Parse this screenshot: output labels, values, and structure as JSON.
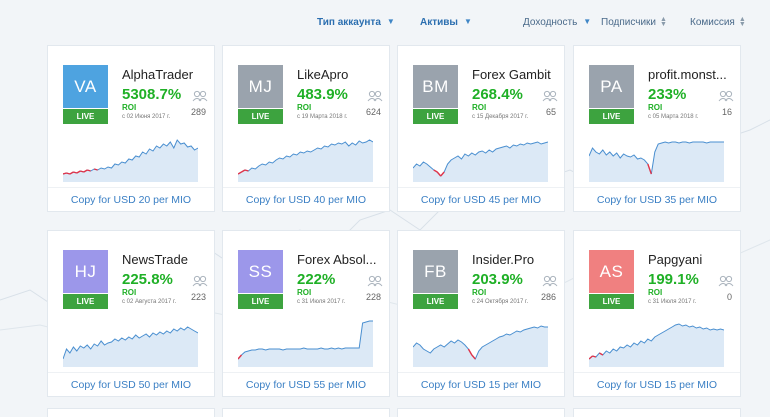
{
  "filters": {
    "account_type": "Тип аккаунта",
    "assets": "Активы",
    "profitability": "Доходность",
    "subscribers": "Подписчики",
    "commission": "Комиссия"
  },
  "cards": [
    {
      "initials": "VA",
      "name": "AlphaTrader",
      "roi": "5308.7%",
      "roi_label": "ROI",
      "live": "LIVE",
      "since": "с 02 Июня 2017 г.",
      "subscribers": "289",
      "copy": "Copy for USD 20 per MIO",
      "avatar_color": "#4ea3e0",
      "spark": [
        40,
        39,
        40,
        38,
        39,
        37,
        38,
        36,
        37,
        35,
        36,
        34,
        35,
        33,
        34,
        30,
        31,
        28,
        29,
        25,
        26,
        22,
        23,
        18,
        20,
        15,
        17,
        12,
        14,
        10,
        12,
        8,
        14,
        6,
        10,
        9,
        13,
        12,
        16,
        14
      ]
    },
    {
      "initials": "MJ",
      "name": "LikeApro",
      "roi": "483.9%",
      "roi_label": "ROI",
      "live": "LIVE",
      "since": "с 19 Марта 2018 г.",
      "subscribers": "624",
      "copy": "Copy for USD 40 per MIO",
      "avatar_color": "#9aa3ad",
      "spark": [
        40,
        38,
        36,
        37,
        34,
        35,
        32,
        30,
        31,
        28,
        29,
        26,
        24,
        25,
        22,
        23,
        20,
        21,
        18,
        19,
        17,
        18,
        16,
        14,
        15,
        12,
        13,
        10,
        11,
        9,
        10,
        8,
        12,
        9,
        11,
        7,
        9,
        8,
        6,
        8
      ]
    },
    {
      "initials": "BM",
      "name": "Forex Gambit",
      "roi": "268.4%",
      "roi_label": "ROI",
      "live": "LIVE",
      "since": "с 15 Декабря 2017 г.",
      "subscribers": "65",
      "copy": "Copy for USD 45 per MIO",
      "avatar_color": "#9aa3ad",
      "spark": [
        34,
        30,
        32,
        28,
        30,
        33,
        36,
        38,
        42,
        38,
        30,
        26,
        24,
        22,
        25,
        20,
        22,
        19,
        21,
        18,
        17,
        19,
        16,
        18,
        15,
        14,
        13,
        12,
        14,
        11,
        12,
        10,
        11,
        9,
        10,
        9,
        8,
        10,
        9,
        8
      ]
    },
    {
      "initials": "PA",
      "name": "profit.monst...",
      "roi": "233%",
      "roi_label": "ROI",
      "live": "LIVE",
      "since": "с 05 Марта 2018 г.",
      "subscribers": "16",
      "copy": "Copy for USD 35 per MIO",
      "avatar_color": "#9aa3ad",
      "spark": [
        22,
        14,
        18,
        20,
        16,
        21,
        18,
        22,
        19,
        24,
        20,
        22,
        23,
        21,
        25,
        24,
        26,
        30,
        40,
        18,
        10,
        9,
        8,
        9,
        8,
        8,
        9,
        8,
        8,
        9,
        8,
        8,
        8,
        8,
        9,
        8,
        8,
        8,
        8,
        8
      ]
    },
    {
      "initials": "HJ",
      "name": "NewsTrade",
      "roi": "225.8%",
      "roi_label": "ROI",
      "live": "LIVE",
      "since": "с 02 Августа 2017 г.",
      "subscribers": "223",
      "copy": "Copy for USD 50 per MIO",
      "avatar_color": "#9c97ea",
      "spark": [
        40,
        30,
        34,
        28,
        32,
        27,
        29,
        26,
        30,
        25,
        27,
        22,
        26,
        24,
        23,
        20,
        22,
        19,
        21,
        18,
        20,
        16,
        19,
        17,
        15,
        18,
        14,
        16,
        13,
        15,
        12,
        14,
        10,
        12,
        9,
        11,
        8,
        10,
        12,
        14
      ]
    },
    {
      "initials": "SS",
      "name": "Forex Absol...",
      "roi": "222%",
      "roi_label": "ROI",
      "live": "LIVE",
      "since": "с 31 Июля 2017 г.",
      "subscribers": "228",
      "copy": "Copy for USD 55 per MIO",
      "avatar_color": "#9c97ea",
      "spark": [
        40,
        36,
        33,
        32,
        31,
        31,
        30,
        30,
        31,
        30,
        30,
        30,
        30,
        31,
        30,
        30,
        30,
        30,
        30,
        29,
        30,
        30,
        30,
        30,
        29,
        30,
        30,
        29,
        30,
        29,
        30,
        29,
        29,
        29,
        29,
        29,
        4,
        3,
        2,
        2
      ]
    },
    {
      "initials": "FB",
      "name": "Insider.Pro",
      "roi": "203.9%",
      "roi_label": "ROI",
      "live": "LIVE",
      "since": "с 24 Октября 2017 г.",
      "subscribers": "286",
      "copy": "Copy for USD 15 per MIO",
      "avatar_color": "#9aa3ad",
      "spark": [
        28,
        24,
        26,
        30,
        32,
        34,
        30,
        28,
        26,
        28,
        25,
        22,
        24,
        21,
        23,
        26,
        30,
        36,
        40,
        32,
        28,
        26,
        24,
        22,
        20,
        18,
        17,
        15,
        16,
        14,
        12,
        13,
        11,
        10,
        9,
        8,
        9,
        7,
        8,
        8
      ]
    },
    {
      "initials": "AS",
      "name": "Papgyani",
      "roi": "199.1%",
      "roi_label": "ROI",
      "live": "LIVE",
      "since": "с 31 Июля 2017 г.",
      "subscribers": "0",
      "copy": "Copy for USD 15 per MIO",
      "avatar_color": "#f08080",
      "spark": [
        40,
        37,
        38,
        34,
        36,
        32,
        34,
        30,
        32,
        28,
        29,
        26,
        28,
        24,
        26,
        22,
        24,
        20,
        22,
        18,
        16,
        14,
        12,
        10,
        8,
        6,
        5,
        7,
        6,
        8,
        7,
        9,
        8,
        10,
        9,
        11,
        10,
        11,
        10,
        11
      ]
    }
  ],
  "colors": {
    "accent": "#3a7fc4",
    "roi_green": "#1fb026",
    "live_green": "#3da33f",
    "loss_red": "#e0344a"
  }
}
